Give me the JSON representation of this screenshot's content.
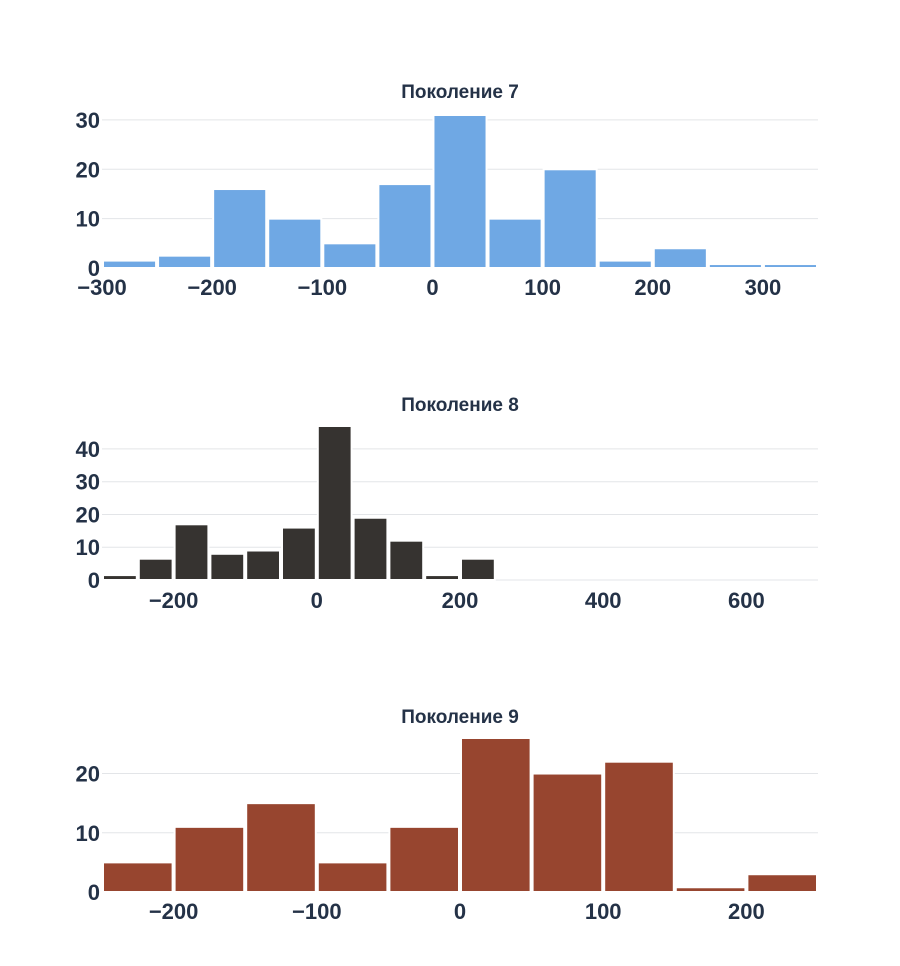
{
  "chart_data": [
    {
      "type": "bar",
      "title": "Поколение 7",
      "color": "#6fa8e4",
      "xlim": [
        -300,
        350
      ],
      "ylim": [
        0,
        31
      ],
      "xticks": [
        -300,
        -200,
        -100,
        0,
        100,
        200,
        300
      ],
      "xtick_labels": [
        "−300",
        "−200",
        "−100",
        "0",
        "100",
        "200",
        "300"
      ],
      "yticks": [
        0,
        10,
        20,
        30
      ],
      "ytick_labels": [
        "0",
        "10",
        "20",
        "30"
      ],
      "bins": [
        {
          "start": -300,
          "end": -250,
          "count": 1.5
        },
        {
          "start": -250,
          "end": -200,
          "count": 2.5
        },
        {
          "start": -200,
          "end": -150,
          "count": 16
        },
        {
          "start": -150,
          "end": -100,
          "count": 10
        },
        {
          "start": -100,
          "end": -50,
          "count": 5
        },
        {
          "start": -50,
          "end": 0,
          "count": 17
        },
        {
          "start": 0,
          "end": 50,
          "count": 31
        },
        {
          "start": 50,
          "end": 100,
          "count": 10
        },
        {
          "start": 100,
          "end": 150,
          "count": 20
        },
        {
          "start": 150,
          "end": 200,
          "count": 1.5
        },
        {
          "start": 200,
          "end": 250,
          "count": 4
        },
        {
          "start": 250,
          "end": 300,
          "count": 0.8
        },
        {
          "start": 300,
          "end": 350,
          "count": 0.8
        }
      ]
    },
    {
      "type": "bar",
      "title": "Поколение 8",
      "color": "#363330",
      "xlim": [
        -300,
        700
      ],
      "ylim": [
        0,
        47
      ],
      "xticks": [
        -200,
        0,
        200,
        400,
        600
      ],
      "xtick_labels": [
        "−200",
        "0",
        "200",
        "400",
        "600"
      ],
      "yticks": [
        0,
        10,
        20,
        30,
        40
      ],
      "ytick_labels": [
        "0",
        "10",
        "20",
        "30",
        "40"
      ],
      "bins": [
        {
          "start": -300,
          "end": -250,
          "count": 1.5
        },
        {
          "start": -250,
          "end": -200,
          "count": 6.5
        },
        {
          "start": -200,
          "end": -150,
          "count": 17
        },
        {
          "start": -150,
          "end": -100,
          "count": 8
        },
        {
          "start": -100,
          "end": -50,
          "count": 9
        },
        {
          "start": -50,
          "end": 0,
          "count": 16
        },
        {
          "start": 0,
          "end": 50,
          "count": 47
        },
        {
          "start": 50,
          "end": 100,
          "count": 19
        },
        {
          "start": 100,
          "end": 150,
          "count": 12
        },
        {
          "start": 150,
          "end": 200,
          "count": 1.5
        },
        {
          "start": 200,
          "end": 250,
          "count": 6.5
        }
      ]
    },
    {
      "type": "bar",
      "title": "Поколение 9",
      "color": "#97452f",
      "xlim": [
        -250,
        250
      ],
      "ylim": [
        0,
        26
      ],
      "xticks": [
        -200,
        -100,
        0,
        100,
        200
      ],
      "xtick_labels": [
        "−200",
        "−100",
        "0",
        "100",
        "200"
      ],
      "yticks": [
        0,
        10,
        20
      ],
      "ytick_labels": [
        "0",
        "10",
        "20"
      ],
      "bins": [
        {
          "start": -250,
          "end": -200,
          "count": 5
        },
        {
          "start": -200,
          "end": -150,
          "count": 11
        },
        {
          "start": -150,
          "end": -100,
          "count": 15
        },
        {
          "start": -100,
          "end": -50,
          "count": 5
        },
        {
          "start": -50,
          "end": 0,
          "count": 11
        },
        {
          "start": 0,
          "end": 50,
          "count": 26
        },
        {
          "start": 50,
          "end": 100,
          "count": 20
        },
        {
          "start": 100,
          "end": 150,
          "count": 22
        },
        {
          "start": 150,
          "end": 200,
          "count": 0.8
        },
        {
          "start": 200,
          "end": 250,
          "count": 3
        }
      ]
    }
  ]
}
